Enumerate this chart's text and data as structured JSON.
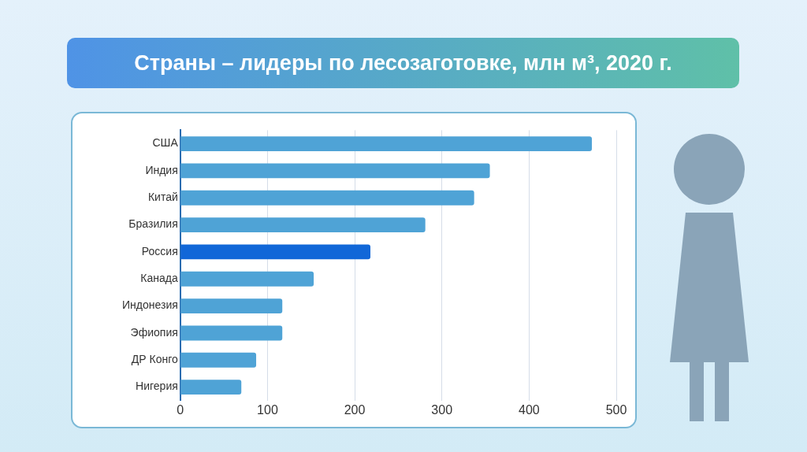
{
  "chart_data": {
    "type": "bar",
    "orientation": "horizontal",
    "title": "Страны – лидеры по лесозаготовке, млн м³, 2020 г.",
    "categories": [
      "США",
      "Индия",
      "Китай",
      "Бразилия",
      "Россия",
      "Канада",
      "Индонезия",
      "Эфиопия",
      "ДР Конго",
      "Нигерия"
    ],
    "values": [
      472,
      355,
      337,
      281,
      218,
      153,
      117,
      117,
      87,
      70
    ],
    "colors": [
      "#4fa3d6",
      "#4fa3d6",
      "#4fa3d6",
      "#4fa3d6",
      "#1167d8",
      "#4fa3d6",
      "#4fa3d6",
      "#4fa3d6",
      "#4fa3d6",
      "#4fa3d6"
    ],
    "xlim": [
      0,
      500
    ],
    "xticks": [
      0,
      100,
      200,
      300,
      400,
      500
    ],
    "grid": "x",
    "legend": false
  }
}
